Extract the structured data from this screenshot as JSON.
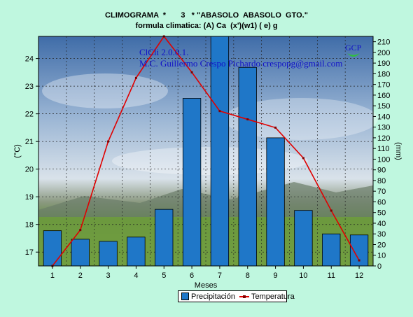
{
  "chart_data": {
    "type": "bar+line",
    "title": "CLIMOGRAMA  *       3   * \"ABASOLO  ABASOLO  GTO.\"",
    "subtitle": "formula climatica: (A) Ca  (x')(w1) ( e) g",
    "categories": [
      "1",
      "2",
      "3",
      "4",
      "5",
      "6",
      "7",
      "8",
      "9",
      "10",
      "11",
      "12"
    ],
    "xlabel": "Meses",
    "ylabel_left": "(°C)",
    "ylabel_right": "(mm)",
    "ylim_left": [
      16.5,
      24.8
    ],
    "ylim_right": [
      0,
      215
    ],
    "yticks_left": [
      17,
      18,
      19,
      20,
      21,
      22,
      23,
      24
    ],
    "yticks_right": [
      0,
      10,
      20,
      30,
      40,
      50,
      60,
      70,
      80,
      90,
      100,
      110,
      120,
      130,
      140,
      150,
      160,
      170,
      180,
      190,
      200,
      210
    ],
    "series": [
      {
        "name": "Precipitación",
        "type": "bar",
        "axis": "right",
        "color": "#1f77c8",
        "values": [
          33,
          25,
          23,
          27,
          53,
          157,
          215,
          186,
          120,
          52,
          30,
          29
        ]
      },
      {
        "name": "Temperatura",
        "type": "line",
        "axis": "left",
        "color": "#e00000",
        "values": [
          16.5,
          17.8,
          21.0,
          23.3,
          24.8,
          23.5,
          22.1,
          21.8,
          21.5,
          20.4,
          18.5,
          16.7
        ]
      }
    ],
    "legend_position": "bottom-center",
    "grid": true
  },
  "overlay": {
    "version": "ClCli 2.0.0.1.",
    "author": "M.C. Guillermo Crespo Pichardo  crespopg@gmail.com",
    "logo": "GCP"
  },
  "legend": {
    "bar_label": "Precipitación",
    "line_label": "Temperatura"
  },
  "colors": {
    "background": "#bff7df",
    "bar": "#1f77c8",
    "line": "#e00000"
  }
}
